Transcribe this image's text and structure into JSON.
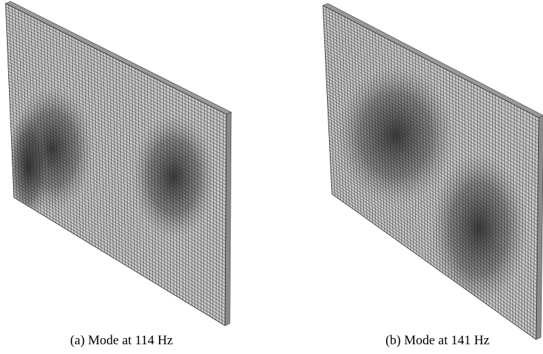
{
  "panels": [
    {
      "caption": "(a) Mode at 114 Hz"
    },
    {
      "caption": "(b) Mode at 141 Hz"
    }
  ]
}
